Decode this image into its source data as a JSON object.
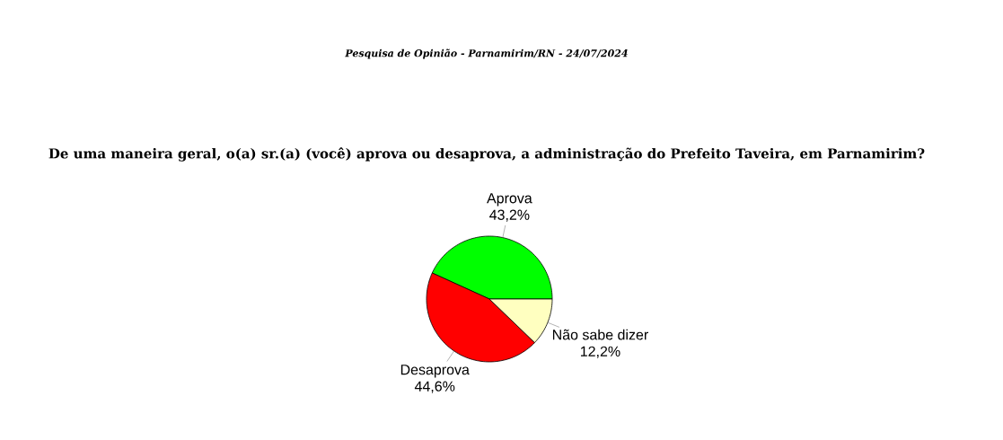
{
  "chart_data": {
    "type": "pie",
    "title": "Pesquisa de Opinião - Parnamirim/RN - 24/07/2024",
    "subtitle": "De uma maneira geral, o(a) sr.(a) (você) aprova ou desaprova, a administração do Prefeito Taveira, em Parnamirim?",
    "categories": [
      "Aprova",
      "Desaprova",
      "Não sabe dizer"
    ],
    "values": [
      43.2,
      44.6,
      12.2
    ],
    "value_labels": [
      "43,2%",
      "44,6%",
      "12,2%"
    ],
    "colors": [
      "#00ff00",
      "#ff0000",
      "#ffffc0"
    ]
  }
}
